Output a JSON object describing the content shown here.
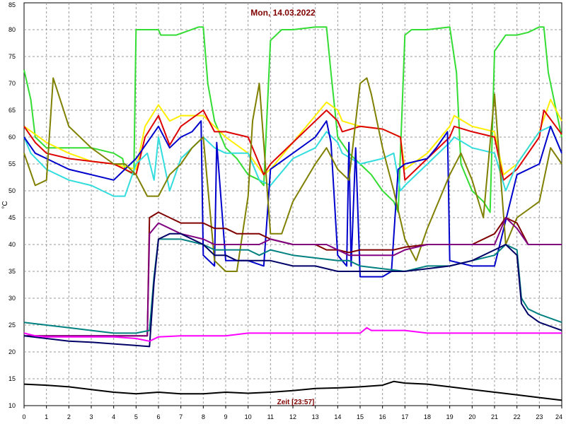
{
  "chart_data": {
    "type": "line",
    "title": "Mon, 14.03.2022",
    "xlabel": "Zeit [23:57]",
    "ylabel": "°C",
    "xlim": [
      0,
      24
    ],
    "ylim": [
      10,
      85
    ],
    "x_ticks": [
      0,
      1,
      2,
      3,
      4,
      5,
      6,
      7,
      8,
      9,
      10,
      11,
      12,
      13,
      14,
      15,
      16,
      17,
      18,
      19,
      20,
      21,
      22,
      23,
      24
    ],
    "y_ticks": [
      10,
      15,
      20,
      25,
      30,
      35,
      40,
      45,
      50,
      55,
      60,
      65,
      70,
      75,
      80,
      85
    ],
    "grid": true,
    "legend": "none",
    "series": [
      {
        "color": "#33dd33",
        "x": [
          0,
          0.3,
          0.5,
          1,
          2,
          3,
          4,
          4.4,
          4.5,
          4.9,
          5,
          5.3,
          6,
          6.1,
          6.8,
          7.8,
          8,
          8.2,
          8.5,
          9,
          9.5,
          10,
          10.5,
          10.7,
          11,
          11.5,
          12,
          13,
          13.5,
          13.7,
          14,
          14.5,
          15,
          15.5,
          16,
          16.5,
          16.7,
          17,
          17.3,
          17.6,
          18,
          19,
          19.3,
          19.5,
          20,
          20.5,
          20.8,
          21,
          21.5,
          22,
          22.5,
          23,
          23.2,
          23.4,
          24
        ],
        "y": [
          72.5,
          67,
          60,
          58,
          58,
          58,
          57,
          56,
          54,
          53,
          80,
          80,
          80,
          79,
          79,
          80.5,
          80.5,
          70,
          63,
          58,
          56,
          53,
          52,
          51,
          78,
          80,
          80,
          80.5,
          80.5,
          72,
          60,
          57,
          55,
          53,
          50,
          48,
          46,
          79,
          80,
          80,
          80,
          80.5,
          72,
          55,
          50,
          48,
          46,
          76,
          79,
          79,
          79.5,
          80.5,
          80.5,
          72,
          60
        ]
      },
      {
        "color": "#ffee00",
        "x": [
          0,
          1,
          2,
          3,
          4,
          5,
          5.4,
          6,
          6.5,
          7,
          8,
          8.5,
          9,
          10,
          10.7,
          11,
          12,
          13,
          13.5,
          14,
          14.2,
          15,
          16,
          16.8,
          17,
          18,
          19,
          19.2,
          20,
          21,
          21.4,
          22,
          23,
          23.5,
          24
        ],
        "y": [
          62,
          59,
          57,
          55.5,
          55,
          54,
          62,
          66,
          63,
          64,
          64,
          62,
          60,
          57,
          53,
          54,
          59,
          64,
          66.5,
          65,
          63,
          62,
          61.5,
          60,
          54,
          57,
          62,
          64,
          62,
          61,
          53,
          55,
          61,
          67,
          63
        ]
      },
      {
        "color": "#dd0000",
        "x": [
          0,
          0.5,
          1,
          2,
          3,
          4,
          5,
          5.4,
          6,
          6.5,
          7,
          8,
          8.5,
          9,
          10,
          10.7,
          11,
          12,
          13,
          13.5,
          14,
          14.2,
          15,
          16,
          16.8,
          17,
          18,
          19,
          19.2,
          20,
          21,
          21.4,
          22,
          23,
          23.2,
          24
        ],
        "y": [
          62,
          59,
          57,
          56,
          55.5,
          55,
          53,
          60,
          64,
          58.5,
          62,
          65,
          61,
          61,
          60,
          53,
          55,
          59,
          63,
          65,
          63,
          61,
          62,
          61.5,
          60,
          52,
          56,
          60,
          62,
          61,
          60,
          52,
          54,
          60,
          65,
          60.5
        ]
      },
      {
        "color": "#33dddd",
        "x": [
          0,
          0.3,
          1,
          2,
          3,
          4,
          4.5,
          5,
          5.5,
          5.8,
          6,
          6.5,
          7,
          8,
          8.5,
          9,
          10,
          10.5,
          11,
          12,
          13,
          13.5,
          14,
          14.2,
          15,
          16,
          16.5,
          16.8,
          17,
          18,
          19,
          19.2,
          20,
          21,
          21.5,
          22,
          23,
          23.5,
          24
        ],
        "y": [
          60,
          57,
          54,
          52,
          51,
          49,
          49,
          55,
          57,
          52,
          60,
          50,
          56,
          60,
          58,
          57,
          57,
          52,
          51,
          56,
          58,
          61,
          59,
          57,
          55,
          56,
          57,
          50,
          51,
          55,
          59,
          60,
          58,
          57,
          50,
          55,
          61,
          62,
          57
        ]
      },
      {
        "color": "#0000cc",
        "x": [
          0,
          0.5,
          1,
          2,
          3,
          4,
          5,
          5.5,
          6,
          6.5,
          7,
          7.5,
          7.9,
          8,
          8.5,
          8.6,
          9,
          10,
          10.7,
          11,
          12,
          13,
          13.5,
          13.7,
          14,
          14.4,
          14.5,
          14.6,
          14.8,
          15,
          16,
          16.4,
          16.7,
          17,
          18,
          18.4,
          18.9,
          19,
          20,
          21,
          22,
          23,
          23.5,
          24
        ],
        "y": [
          60,
          57,
          56,
          54,
          53,
          52,
          56,
          59,
          62,
          58,
          60,
          61,
          63,
          38,
          36,
          59,
          37,
          37,
          36,
          54,
          57,
          60,
          63,
          59,
          38,
          36,
          59,
          36,
          58,
          34,
          34,
          35,
          54,
          55,
          56,
          58,
          61,
          37,
          36,
          36,
          53,
          55,
          62,
          57
        ]
      },
      {
        "color": "#808000",
        "x": [
          0,
          0.5,
          1,
          1.3,
          2,
          3,
          4,
          4.5,
          5,
          5.5,
          6,
          6.5,
          7,
          7.5,
          8,
          8.5,
          9,
          9.5,
          10,
          10.2,
          10.5,
          11,
          11.5,
          12,
          13,
          13.5,
          14,
          14.5,
          15,
          15.3,
          15.5,
          16,
          16.5,
          17,
          17.5,
          18,
          19,
          19.5,
          20,
          20.5,
          21,
          21.5,
          22,
          23,
          23.5,
          24
        ],
        "y": [
          57,
          51,
          52,
          71,
          62,
          58,
          55,
          55,
          53,
          49,
          49,
          53,
          55,
          58,
          60,
          37,
          35,
          35,
          49,
          63,
          70,
          42,
          42,
          48,
          55,
          58,
          54,
          52,
          70,
          71,
          68,
          58,
          50,
          41,
          37,
          43,
          53,
          57,
          52,
          45,
          68,
          40,
          45,
          48,
          58,
          55
        ]
      },
      {
        "color": "#800000",
        "x": [
          0,
          5.5,
          5.6,
          6,
          6.5,
          7,
          8,
          8.5,
          9,
          9.5,
          10,
          10.5,
          11,
          12,
          13,
          13.5,
          14,
          14.5,
          15,
          16,
          16.5,
          17,
          18,
          19,
          20,
          21,
          21.5,
          22,
          22.5,
          23,
          24
        ],
        "y": [
          23,
          23,
          45,
          46,
          45,
          44,
          44,
          43,
          43,
          42,
          42,
          42,
          41,
          40,
          40,
          39,
          39,
          38.5,
          39,
          39,
          39,
          39.5,
          40,
          40,
          40,
          42,
          45,
          44,
          40,
          40,
          40
        ]
      },
      {
        "color": "#800080",
        "x": [
          0,
          5.5,
          5.6,
          6,
          6.5,
          7,
          8,
          8.5,
          9,
          9.5,
          10,
          10.5,
          11,
          12,
          13,
          13.5,
          14,
          14.5,
          15,
          16,
          16.5,
          17,
          18,
          19,
          20,
          21,
          21.5,
          22,
          22.5,
          23,
          24
        ],
        "y": [
          23,
          23,
          42,
          44,
          43,
          42,
          41,
          40,
          40,
          40,
          40,
          40,
          41,
          40,
          40,
          40,
          39,
          38,
          38,
          38,
          38,
          39,
          40,
          40,
          40,
          40,
          45,
          43,
          40,
          40,
          40
        ]
      },
      {
        "color": "#008080",
        "x": [
          0,
          1,
          2,
          3,
          4,
          5,
          5.6,
          5.8,
          6,
          6.5,
          7,
          8,
          8.5,
          9,
          9.5,
          10,
          10.5,
          11,
          12,
          13,
          14,
          14.5,
          15,
          16,
          17,
          18,
          19,
          20,
          21,
          21.5,
          22,
          22.2,
          22.5,
          23,
          24
        ],
        "y": [
          25.5,
          25,
          24.5,
          24,
          23.5,
          23.5,
          24,
          34,
          41,
          41,
          41,
          40,
          39,
          39,
          39,
          39,
          38,
          39,
          38,
          37.5,
          37,
          37,
          36,
          35.5,
          35,
          36,
          36,
          37,
          38,
          40,
          39,
          30,
          28,
          27,
          25.5
        ]
      },
      {
        "color": "#000066",
        "x": [
          0,
          1,
          2,
          3,
          4,
          5,
          5.6,
          5.8,
          6,
          6.5,
          7,
          8,
          8.5,
          9,
          9.5,
          10,
          10.5,
          11,
          12,
          13,
          14,
          14.5,
          15,
          16,
          17,
          18,
          19,
          20,
          21,
          21.5,
          22,
          22.2,
          22.5,
          23,
          24
        ],
        "y": [
          23,
          22.5,
          22,
          21.8,
          21.5,
          21.2,
          21,
          33,
          41,
          42,
          42,
          40,
          38,
          38,
          37,
          37,
          37,
          37,
          36,
          36,
          35,
          35,
          35,
          35,
          35,
          35.5,
          36,
          37,
          39,
          40,
          38,
          29,
          27,
          25.5,
          24
        ]
      },
      {
        "color": "#ff00ff",
        "x": [
          0,
          0.5,
          1,
          2,
          3,
          4,
          5,
          5.6,
          6,
          7,
          8,
          9,
          10,
          11,
          12,
          13,
          14,
          15,
          15.3,
          15.5,
          16,
          17,
          18,
          19,
          20,
          21,
          22,
          23,
          24
        ],
        "y": [
          23.5,
          23,
          22.8,
          22.8,
          22.8,
          22.8,
          22.5,
          22,
          22.8,
          23,
          23,
          23,
          23.5,
          23.5,
          23.5,
          23.5,
          23.5,
          23.5,
          24.5,
          24,
          24,
          24,
          23.5,
          23.5,
          23.5,
          23.5,
          23.5,
          23.5,
          23.5
        ]
      },
      {
        "color": "#000000",
        "x": [
          0,
          1,
          2,
          3,
          4,
          5,
          6,
          7,
          8,
          9,
          10,
          11,
          12,
          13,
          14,
          15,
          16,
          16.5,
          17,
          18,
          19,
          20,
          21,
          22,
          23,
          24
        ],
        "y": [
          14,
          13.8,
          13.5,
          13,
          12.5,
          12.2,
          12.5,
          12.2,
          12.2,
          12.5,
          12.3,
          12.5,
          12.8,
          13.2,
          13.3,
          13.5,
          13.8,
          14.5,
          14.2,
          14,
          13.5,
          13,
          12.5,
          12,
          11.5,
          11
        ]
      }
    ]
  }
}
